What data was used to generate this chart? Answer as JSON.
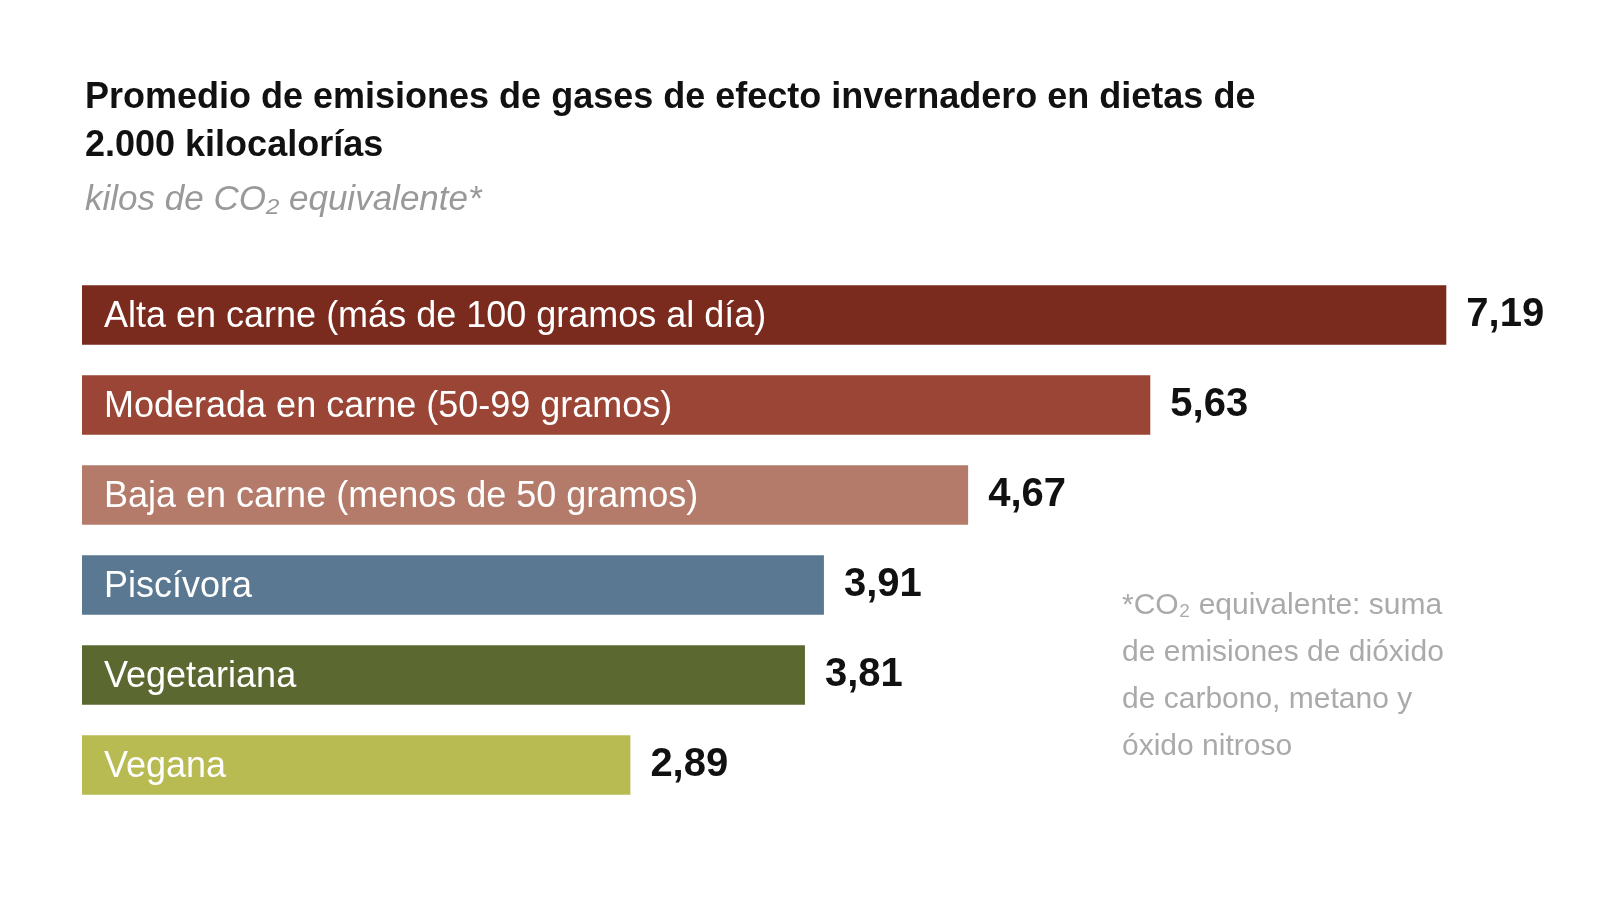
{
  "chart_data": {
    "type": "bar",
    "orientation": "horizontal",
    "title": "Promedio de emisiones de gases de efecto invernadero en dietas de 2.000 kilocalorías",
    "subtitle": "kilos de CO₂ equivalente*",
    "categories": [
      "Alta en carne (más de 100 gramos al día)",
      "Moderada en carne (50-99 gramos)",
      "Baja en carne (menos de 50 gramos)",
      "Piscívora",
      "Vegetariana",
      "Vegana"
    ],
    "values": [
      7.19,
      5.63,
      4.67,
      3.91,
      3.81,
      2.89
    ],
    "colors": [
      "#7b2a1e",
      "#9a4535",
      "#b57b6a",
      "#5a7891",
      "#5b6830",
      "#b8bb52"
    ],
    "value_labels": [
      "7,19",
      "5,63",
      "4,67",
      "3,91",
      "3,81",
      "2,89"
    ],
    "annotations": [
      "*CO₂ equivalente: suma de emisiones de dióxido de carbono, metano y óxido nitroso"
    ],
    "tick_labels": false
  }
}
